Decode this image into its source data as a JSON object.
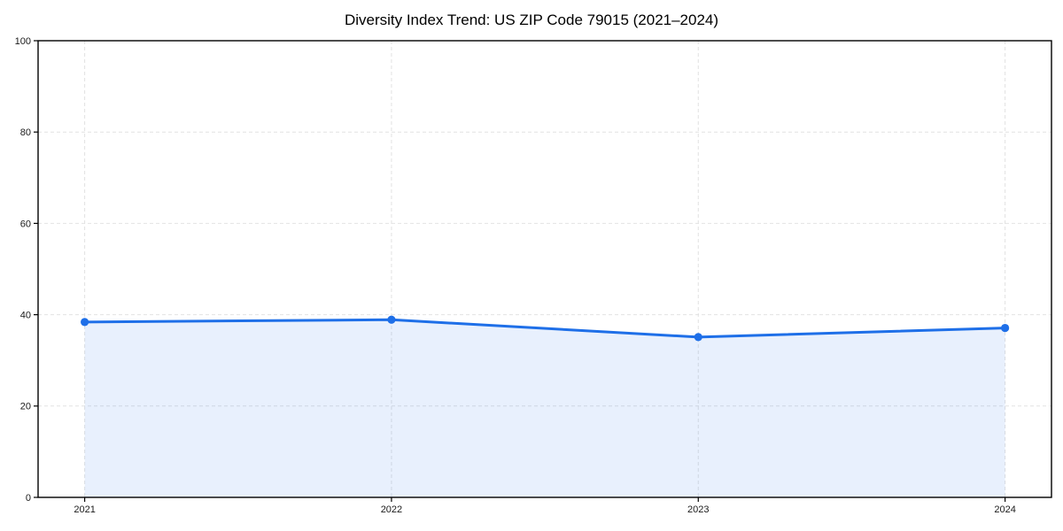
{
  "chart_data": {
    "type": "area",
    "title": "Diversity Index Trend: US ZIP Code 79015 (2021–2024)",
    "x": [
      "2021",
      "2022",
      "2023",
      "2024"
    ],
    "series": [
      {
        "name": "Diversity Index",
        "values": [
          38.4,
          38.9,
          35.1,
          37.1
        ]
      }
    ],
    "xlabel": "",
    "ylabel": "",
    "ylim": [
      0,
      100
    ],
    "yticks": [
      0,
      20,
      40,
      60,
      80,
      100
    ],
    "grid": true,
    "legend_position": "none",
    "colors": {
      "line": "#1e6fe8",
      "marker": "#1e6fe8",
      "fill": "rgba(30,111,232,0.10)",
      "gridline": "#e2e2e2",
      "spine": "#000000",
      "tick_label": "#1a1a1a",
      "title": "#000000"
    }
  }
}
